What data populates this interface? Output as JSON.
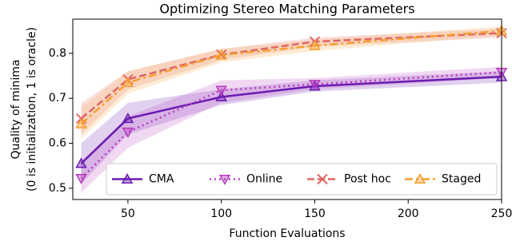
{
  "chart_data": {
    "type": "line",
    "title": "Optimizing Stereo Matching Parameters",
    "xlabel": "Function Evaluations",
    "ylabel": [
      "Quality of minima",
      "(0 is initialization, 1 is oracle)"
    ],
    "x": [
      25,
      50,
      100,
      150,
      250
    ],
    "xlim": [
      20.5,
      250
    ],
    "xticks": [
      50,
      100,
      150,
      200,
      250
    ],
    "ylim": [
      0.475,
      0.876
    ],
    "yticks": [
      0.5,
      0.6,
      0.7,
      0.8
    ],
    "legend": "lower right",
    "series": [
      {
        "name": "CMA",
        "color": "#6a1bb0",
        "linestyle": "solid",
        "marker": "triangle-up",
        "values": [
          0.555,
          0.655,
          0.703,
          0.727,
          0.748
        ],
        "lower": [
          0.51,
          0.62,
          0.685,
          0.715,
          0.735
        ],
        "upper": [
          0.6,
          0.69,
          0.72,
          0.74,
          0.76
        ]
      },
      {
        "name": "Online",
        "color": "#b63cbf",
        "linestyle": "dotted",
        "marker": "triangle-down",
        "values": [
          0.522,
          0.625,
          0.718,
          0.731,
          0.758
        ],
        "lower": [
          0.49,
          0.59,
          0.69,
          0.72,
          0.745
        ],
        "upper": [
          0.56,
          0.66,
          0.74,
          0.745,
          0.77
        ]
      },
      {
        "name": "Post hoc",
        "color": "#e06666",
        "linestyle": "dashed",
        "marker": "x",
        "values": [
          0.655,
          0.742,
          0.797,
          0.826,
          0.845
        ],
        "lower": [
          0.62,
          0.72,
          0.785,
          0.815,
          0.835
        ],
        "upper": [
          0.69,
          0.76,
          0.81,
          0.835,
          0.855
        ]
      },
      {
        "name": "Staged",
        "color": "#f5a030",
        "linestyle": "dashdot",
        "marker": "triangle-up",
        "values": [
          0.643,
          0.735,
          0.796,
          0.817,
          0.85
        ],
        "lower": [
          0.61,
          0.71,
          0.78,
          0.805,
          0.84
        ],
        "upper": [
          0.68,
          0.76,
          0.81,
          0.83,
          0.86
        ]
      }
    ]
  }
}
